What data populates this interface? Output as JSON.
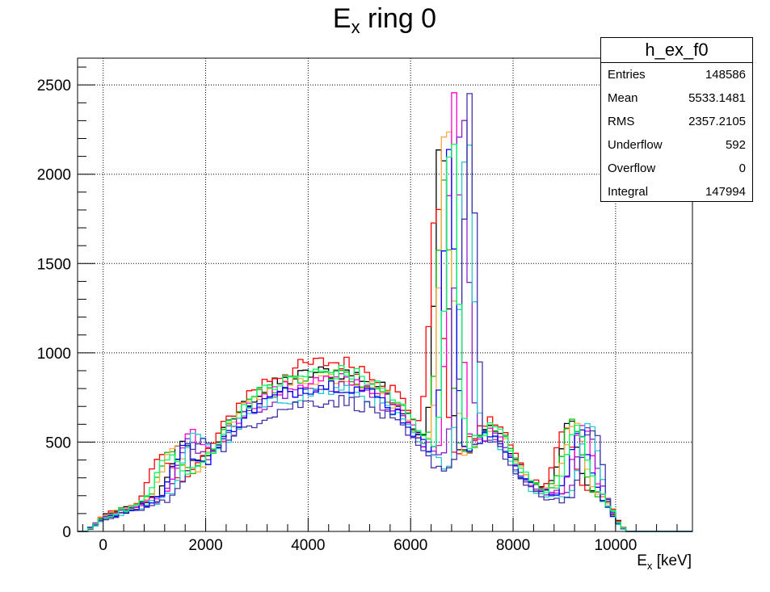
{
  "chart_data": {
    "type": "line",
    "title": {
      "main": "E",
      "sub": "x",
      "rest": " ring 0"
    },
    "xlabel": {
      "main": "E",
      "sub": "x",
      "rest": " [keV]"
    },
    "ylabel": "",
    "xlim": [
      -500,
      11500
    ],
    "ylim": [
      0,
      2650
    ],
    "x_ticks": [
      0,
      2000,
      4000,
      6000,
      8000,
      10000
    ],
    "y_ticks": [
      0,
      500,
      1000,
      1500,
      2000,
      2500
    ],
    "grid": true,
    "bin_width": 100,
    "series": [
      {
        "color": "#000000",
        "peak1_x": 1500,
        "peak1_h": 470,
        "peak2_x": 6600,
        "peak2_h": 2300,
        "peak3_x": 9100,
        "peak3_h": 700,
        "scale": 1.0
      },
      {
        "color": "#ff0000",
        "peak1_x": 1100,
        "peak1_h": 420,
        "peak2_x": 6500,
        "peak2_h": 1900,
        "peak3_x": 9000,
        "peak3_h": 640,
        "scale": 1.06
      },
      {
        "color": "#00c000",
        "peak1_x": 1300,
        "peak1_h": 450,
        "peak2_x": 6650,
        "peak2_h": 2100,
        "peak3_x": 9150,
        "peak3_h": 760,
        "scale": 0.98
      },
      {
        "color": "#ffaa44",
        "peak1_x": 1350,
        "peak1_h": 520,
        "peak2_x": 6700,
        "peak2_h": 2500,
        "peak3_x": 9200,
        "peak3_h": 780,
        "scale": 0.97
      },
      {
        "color": "#ff00cc",
        "peak1_x": 1700,
        "peak1_h": 530,
        "peak2_x": 6850,
        "peak2_h": 2620,
        "peak3_x": 9350,
        "peak3_h": 740,
        "scale": 0.95
      },
      {
        "color": "#8822cc",
        "peak1_x": 1650,
        "peak1_h": 500,
        "peak2_x": 7000,
        "peak2_h": 2550,
        "peak3_x": 9450,
        "peak3_h": 720,
        "scale": 0.9
      },
      {
        "color": "#22cccc",
        "peak1_x": 1800,
        "peak1_h": 560,
        "peak2_x": 7100,
        "peak2_h": 2400,
        "peak3_x": 9500,
        "peak3_h": 800,
        "scale": 0.88
      },
      {
        "color": "#0000ff",
        "peak1_x": 1550,
        "peak1_h": 480,
        "peak2_x": 6750,
        "peak2_h": 2200,
        "peak3_x": 9300,
        "peak3_h": 690,
        "scale": 0.92
      },
      {
        "color": "#4433aa",
        "peak1_x": 1900,
        "peak1_h": 490,
        "peak2_x": 7150,
        "peak2_h": 2500,
        "peak3_x": 9550,
        "peak3_h": 780,
        "scale": 0.82
      },
      {
        "color": "#00ff66",
        "peak1_x": 1250,
        "peak1_h": 460,
        "peak2_x": 6800,
        "peak2_h": 2350,
        "peak3_x": 9250,
        "peak3_h": 750,
        "scale": 1.0
      }
    ]
  },
  "stats": {
    "name": "h_ex_f0",
    "rows": [
      {
        "label": "Entries",
        "value": "148586"
      },
      {
        "label": "Mean",
        "value": "5533.1481"
      },
      {
        "label": "RMS",
        "value": "2357.2105"
      },
      {
        "label": "Underflow",
        "value": "592"
      },
      {
        "label": "Overflow",
        "value": "0"
      },
      {
        "label": "Integral",
        "value": "147994"
      }
    ]
  }
}
